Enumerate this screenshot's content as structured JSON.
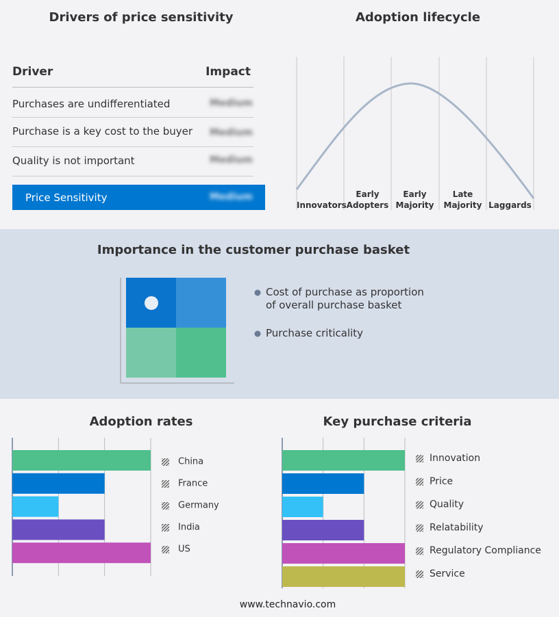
{
  "drivers": {
    "title": "Drivers of price sensitivity",
    "header": [
      "Driver",
      "Impact"
    ],
    "rows": [
      [
        "Purchases are undifferentiated",
        "Medium"
      ],
      [
        "Purchase is a key cost to the buyer",
        "Medium"
      ],
      [
        "Quality is not important",
        "Medium"
      ]
    ],
    "summary": [
      "Price Sensitivity",
      "Medium"
    ]
  },
  "lifecycle": {
    "title": "Adoption lifecycle",
    "stages": [
      "Innovators",
      "Early Adopters",
      "Early Majority",
      "Late Majority",
      "Laggards"
    ]
  },
  "basket": {
    "title": "Importance in the customer purchase basket",
    "legend": [
      "Cost of purchase as proportion of overall purchase basket",
      "Purchase criticality"
    ]
  },
  "chart_data": [
    {
      "type": "bar",
      "orientation": "horizontal",
      "title": "Adoption rates",
      "categories": [
        "China",
        "France",
        "Germany",
        "India",
        "US"
      ],
      "values": [
        3,
        2,
        1,
        2,
        3
      ],
      "colors": [
        "#4fbf8c",
        "#0077d0",
        "#33c1f7",
        "#6a4fc0",
        "#c052b9"
      ],
      "xlim": [
        0,
        3
      ],
      "xticks": [
        0,
        1,
        2,
        3
      ],
      "grid": true
    },
    {
      "type": "bar",
      "orientation": "horizontal",
      "title": "Key purchase criteria",
      "categories": [
        "Innovation",
        "Price",
        "Quality",
        "Relatability",
        "Regulatory Compliance",
        "Service"
      ],
      "values": [
        3,
        2,
        1,
        2,
        3,
        3
      ],
      "colors": [
        "#4fbf8c",
        "#0077d0",
        "#33c1f7",
        "#6a4fc0",
        "#c052b9",
        "#bdb94f"
      ],
      "xlim": [
        0,
        3
      ],
      "xticks": [
        0,
        1,
        2,
        3
      ],
      "grid": true
    }
  ],
  "footer": "www.technavio.com"
}
